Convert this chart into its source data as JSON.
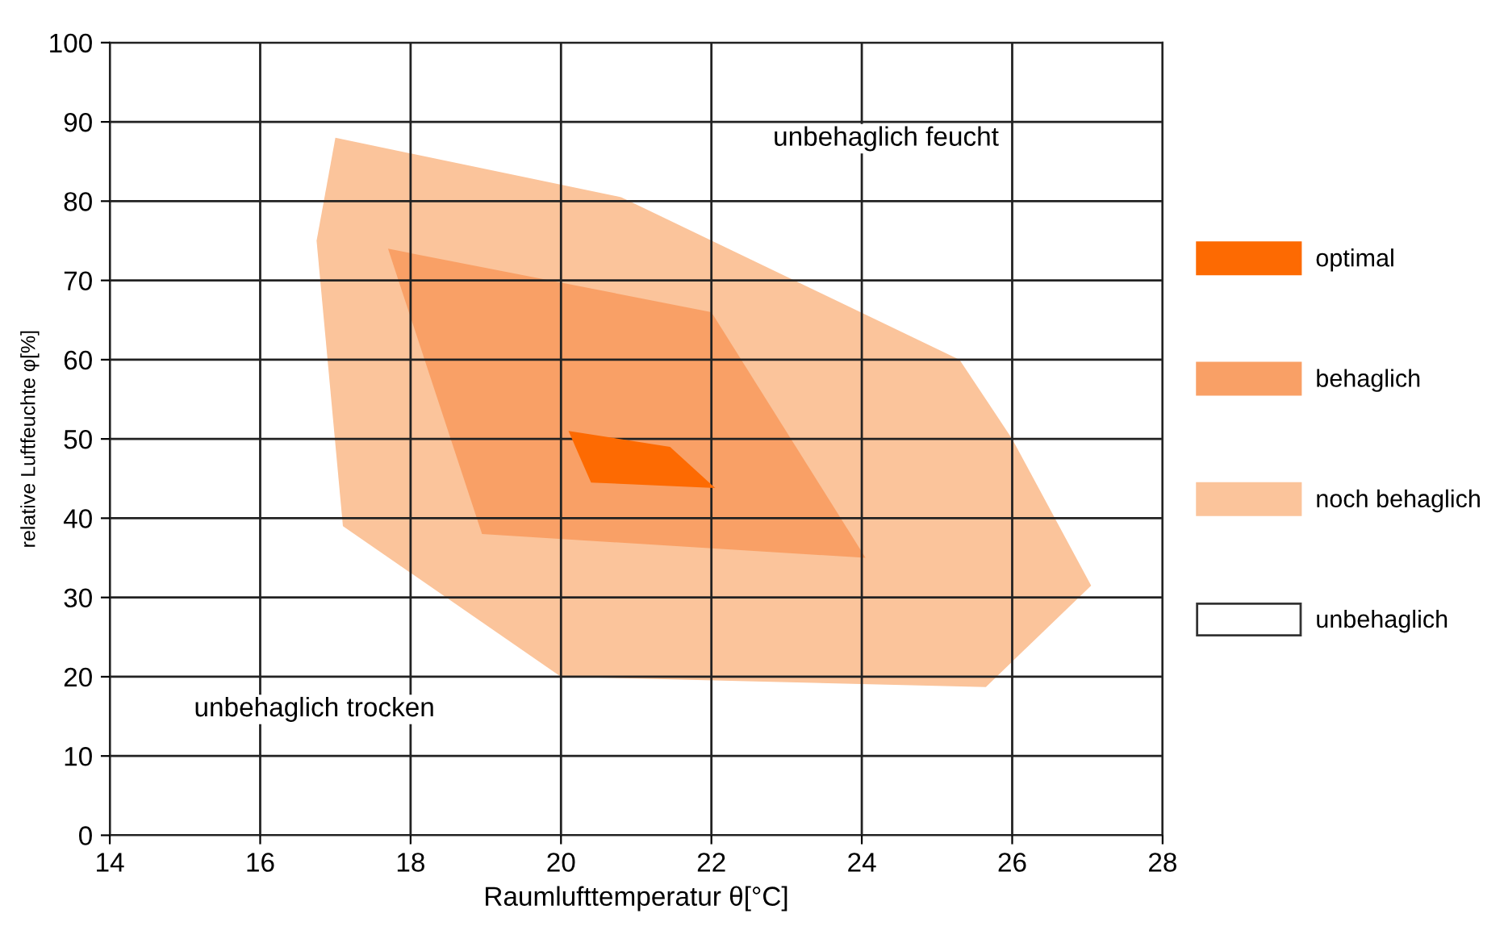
{
  "chart_data": {
    "type": "area",
    "xlabel": "Raumlufttemperatur θ[°C]",
    "ylabel": "relative Luftfeuchte φ[%]",
    "xlim": [
      14,
      28
    ],
    "xticks": [
      14,
      16,
      18,
      20,
      22,
      24,
      26,
      28
    ],
    "ylim": [
      0,
      100
    ],
    "yticks": [
      0,
      10,
      20,
      30,
      40,
      50,
      60,
      70,
      80,
      90,
      100
    ],
    "grid": true,
    "legend": "right",
    "annotations": [
      "unbehaglich feucht",
      "unbehaglich trocken"
    ],
    "series": [
      {
        "name": "noch behaglich",
        "color": "#fbc49b",
        "x": [
          17,
          20.8,
          25.3,
          26,
          27.05,
          25.65,
          20,
          17.1,
          16.75
        ],
        "values": [
          88,
          80.5,
          60,
          50,
          31.5,
          18.7,
          20,
          39,
          75
        ]
      },
      {
        "name": "behaglich",
        "color": "#f9a066",
        "x": [
          17.7,
          22,
          24.05,
          18.95
        ],
        "values": [
          74,
          66,
          35,
          38
        ]
      },
      {
        "name": "optimal",
        "color": "#fd6a02",
        "x": [
          20.1,
          21.45,
          22.05,
          20.4
        ],
        "values": [
          51,
          49,
          43.8,
          44.5
        ]
      },
      {
        "name": "unbehaglich",
        "color": "#ffffff"
      }
    ]
  }
}
